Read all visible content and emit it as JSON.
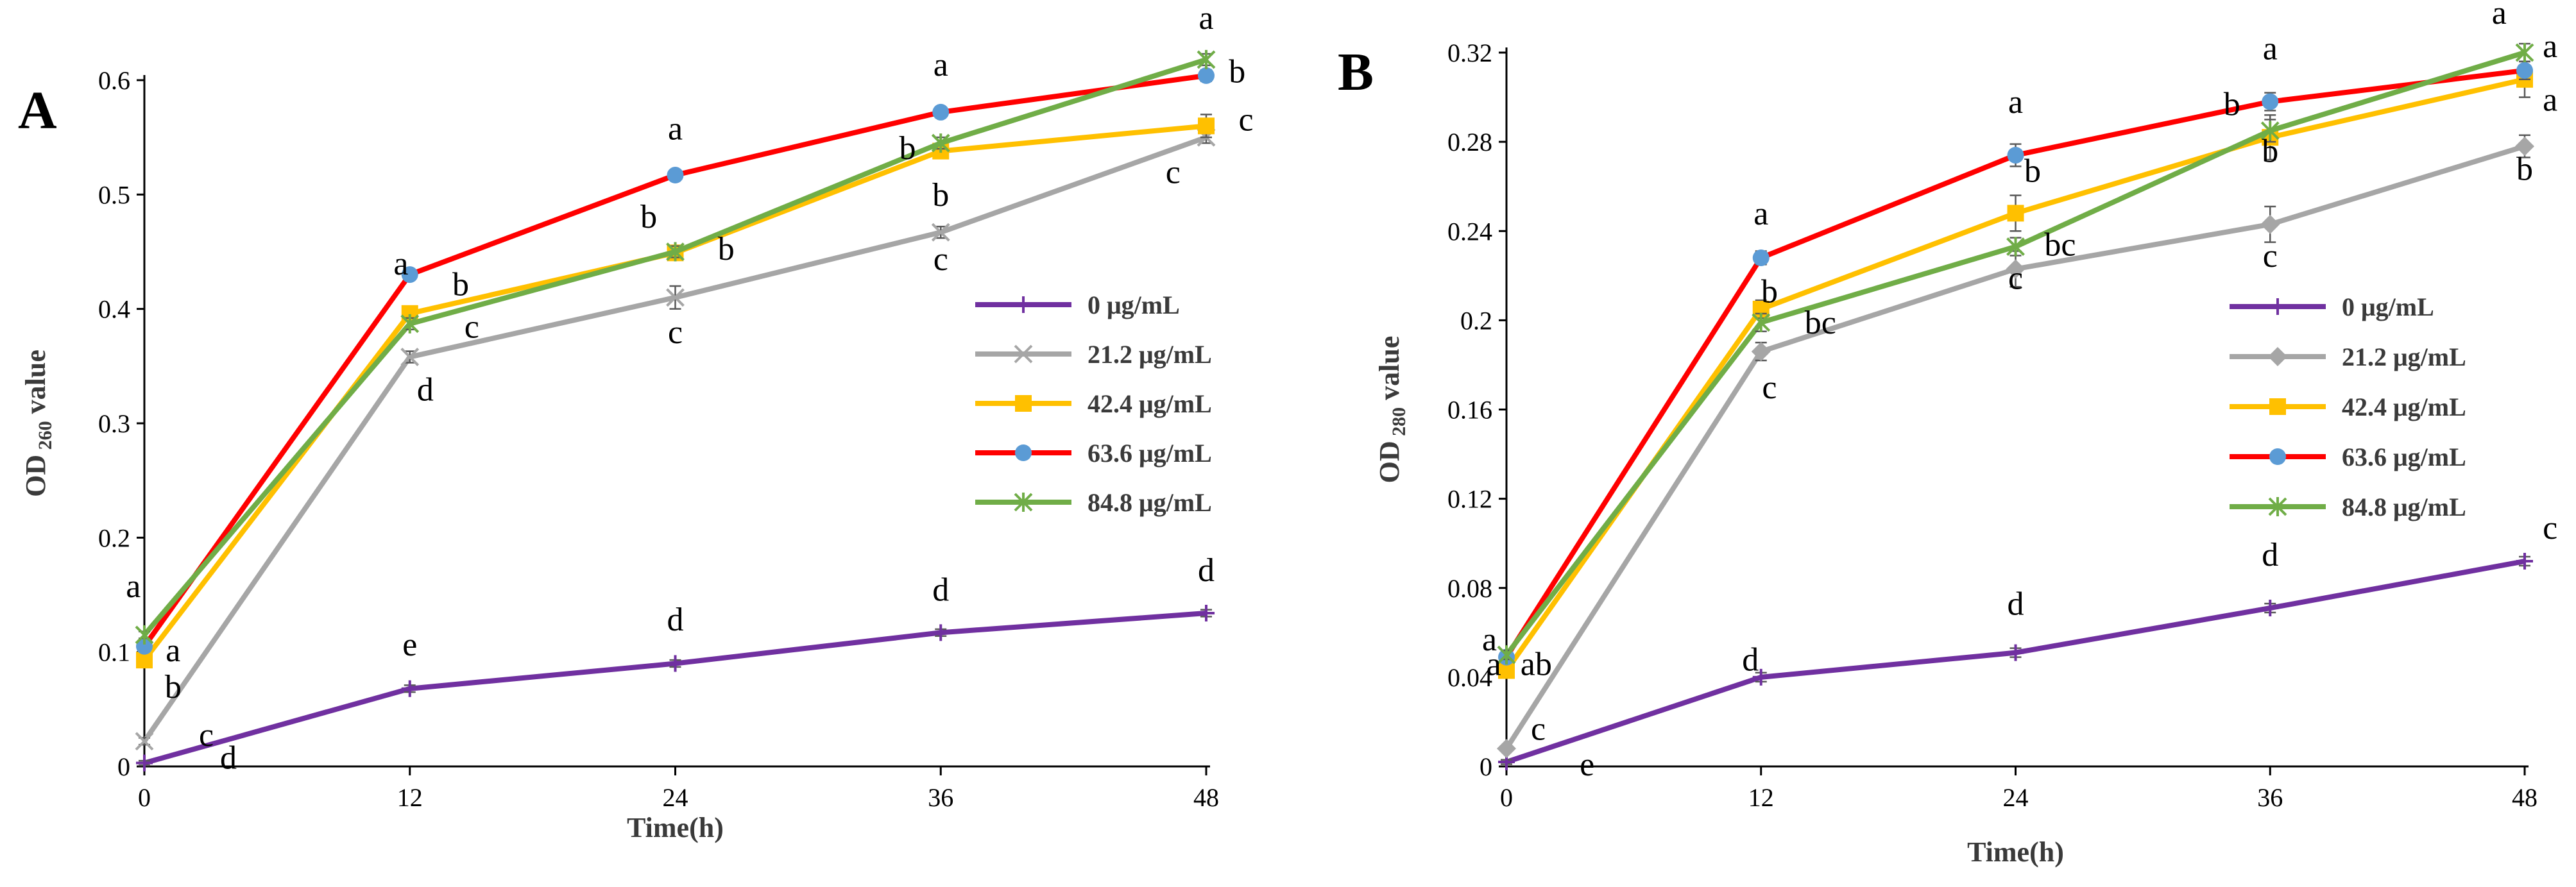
{
  "colors": {
    "0 μg/mL": "#7030A0",
    "21.2 μg/mL": "#A6A6A6",
    "42.4 μg/mL": "#FFC000",
    "63.6 μg/mL": "#FF0000",
    "84.8 μg/mL": "#70AD47",
    "marker_63_6": "#5B9BD5",
    "error_bars": "#595959",
    "axis": "#000000"
  },
  "chart_data": [
    {
      "panel_label": "A",
      "type": "line",
      "title": "",
      "xlabel": "Time(h)",
      "ylabel": {
        "prefix": "OD",
        "sub": "260",
        "suffix": " value"
      },
      "x": [
        0,
        12,
        24,
        36,
        48
      ],
      "xticks": [
        "0",
        "12",
        "24",
        "36",
        "48"
      ],
      "ylim": [
        0,
        0.6
      ],
      "yticks": [
        0,
        0.1,
        0.2,
        0.3,
        0.4,
        0.5,
        0.6
      ],
      "ytick_labels": [
        "0",
        "0.1",
        "0.2",
        "0.3",
        "0.4",
        "0.5",
        "0.6"
      ],
      "series": [
        {
          "name": "0 μg/mL",
          "marker": "plus",
          "values": [
            0.003,
            0.068,
            0.09,
            0.117,
            0.134
          ],
          "errors": [
            0.002,
            0.003,
            0.003,
            0.003,
            0.003
          ]
        },
        {
          "name": "21.2 μg/mL",
          "marker": "x",
          "values": [
            0.022,
            0.358,
            0.41,
            0.467,
            0.55
          ],
          "errors": [
            0.003,
            0.005,
            0.01,
            0.005,
            0.005
          ]
        },
        {
          "name": "42.4 μg/mL",
          "marker": "square",
          "values": [
            0.093,
            0.396,
            0.449,
            0.538,
            0.56
          ],
          "errors": [
            0.004,
            0.005,
            0.005,
            0.005,
            0.01
          ]
        },
        {
          "name": "63.6 μg/mL",
          "marker": "circle",
          "values": [
            0.105,
            0.43,
            0.517,
            0.572,
            0.604
          ],
          "errors": [
            0.003,
            0.003,
            0.003,
            0.003,
            0.005
          ]
        },
        {
          "name": "84.8 μg/mL",
          "marker": "asterisk",
          "values": [
            0.115,
            0.387,
            0.45,
            0.545,
            0.618
          ],
          "errors": [
            0.003,
            0.005,
            0.005,
            0.005,
            0.005
          ]
        }
      ],
      "annotations": [
        {
          "text": "a",
          "x": -0.5,
          "y": 0.148
        },
        {
          "text": "a",
          "x": 1.3,
          "y": 0.092
        },
        {
          "text": "b",
          "x": 1.3,
          "y": 0.06
        },
        {
          "text": "c",
          "x": 2.8,
          "y": 0.018
        },
        {
          "text": "d",
          "x": 3.8,
          "y": -0.002
        },
        {
          "text": "e",
          "x": 12,
          "y": 0.097
        },
        {
          "text": "a",
          "x": 11.6,
          "y": 0.43
        },
        {
          "text": "b",
          "x": 14.3,
          "y": 0.412
        },
        {
          "text": "c",
          "x": 14.8,
          "y": 0.375
        },
        {
          "text": "d",
          "x": 12.7,
          "y": 0.32
        },
        {
          "text": "a",
          "x": 24,
          "y": 0.548
        },
        {
          "text": "b",
          "x": 22.8,
          "y": 0.471
        },
        {
          "text": "b",
          "x": 26.3,
          "y": 0.443
        },
        {
          "text": "c",
          "x": 24,
          "y": 0.37
        },
        {
          "text": "d",
          "x": 24,
          "y": 0.119
        },
        {
          "text": "a",
          "x": 36,
          "y": 0.604
        },
        {
          "text": "b",
          "x": 34.5,
          "y": 0.531
        },
        {
          "text": "b",
          "x": 36,
          "y": 0.49
        },
        {
          "text": "c",
          "x": 36,
          "y": 0.434
        },
        {
          "text": "d",
          "x": 36,
          "y": 0.145
        },
        {
          "text": "a",
          "x": 48,
          "y": 0.645
        },
        {
          "text": "b",
          "x": 49.4,
          "y": 0.598
        },
        {
          "text": "c",
          "x": 49.8,
          "y": 0.556
        },
        {
          "text": "c",
          "x": 46.5,
          "y": 0.51
        },
        {
          "text": "d",
          "x": 48,
          "y": 0.162
        }
      ]
    },
    {
      "panel_label": "B",
      "type": "line",
      "title": "",
      "xlabel": "Time(h)",
      "ylabel": {
        "prefix": "OD",
        "sub": "280",
        "suffix": " value"
      },
      "x": [
        0,
        12,
        24,
        36,
        48
      ],
      "xticks": [
        "0",
        "12",
        "24",
        "36",
        "48"
      ],
      "ylim": [
        0,
        0.32
      ],
      "yticks": [
        0,
        0.04,
        0.08,
        0.12,
        0.16,
        0.2,
        0.24,
        0.28,
        0.32
      ],
      "ytick_labels": [
        "0",
        "0.04",
        "0.08",
        "0.12",
        "0.16",
        "0.2",
        "0.24",
        "0.28",
        "0.32"
      ],
      "series": [
        {
          "name": "0 μg/mL",
          "marker": "plus",
          "values": [
            0.002,
            0.04,
            0.051,
            0.071,
            0.092
          ],
          "errors": [
            0.001,
            0.002,
            0.002,
            0.002,
            0.002
          ]
        },
        {
          "name": "21.2 μg/mL",
          "marker": "diamond",
          "values": [
            0.008,
            0.186,
            0.223,
            0.243,
            0.278
          ],
          "errors": [
            0.001,
            0.004,
            0.008,
            0.008,
            0.005
          ]
        },
        {
          "name": "42.4 μg/mL",
          "marker": "square",
          "values": [
            0.043,
            0.205,
            0.248,
            0.282,
            0.308
          ],
          "errors": [
            0.002,
            0.004,
            0.008,
            0.01,
            0.008
          ]
        },
        {
          "name": "63.6 μg/mL",
          "marker": "circle",
          "values": [
            0.049,
            0.228,
            0.274,
            0.298,
            0.312
          ],
          "errors": [
            0.002,
            0.003,
            0.005,
            0.004,
            0.004
          ]
        },
        {
          "name": "84.8 μg/mL",
          "marker": "asterisk",
          "values": [
            0.05,
            0.199,
            0.233,
            0.285,
            0.32
          ],
          "errors": [
            0.002,
            0.004,
            0.004,
            0.005,
            0.004
          ]
        }
      ],
      "annotations": [
        {
          "text": "a",
          "x": -0.8,
          "y": 0.052
        },
        {
          "text": "a",
          "x": -0.6,
          "y": 0.041
        },
        {
          "text": "ab",
          "x": 1.4,
          "y": 0.041
        },
        {
          "text": "c",
          "x": 1.5,
          "y": 0.012
        },
        {
          "text": "e",
          "x": 3.8,
          "y": -0.004
        },
        {
          "text": "a",
          "x": 12,
          "y": 0.243
        },
        {
          "text": "b",
          "x": 12.4,
          "y": 0.208
        },
        {
          "text": "bc",
          "x": 14.8,
          "y": 0.194
        },
        {
          "text": "c",
          "x": 12.4,
          "y": 0.165
        },
        {
          "text": "d",
          "x": 11.5,
          "y": 0.043
        },
        {
          "text": "a",
          "x": 24,
          "y": 0.293
        },
        {
          "text": "b",
          "x": 24.8,
          "y": 0.262
        },
        {
          "text": "bc",
          "x": 26.1,
          "y": 0.229
        },
        {
          "text": "c",
          "x": 24,
          "y": 0.214
        },
        {
          "text": "d",
          "x": 24,
          "y": 0.068
        },
        {
          "text": "a",
          "x": 36,
          "y": 0.317
        },
        {
          "text": "b",
          "x": 34.2,
          "y": 0.292
        },
        {
          "text": "b",
          "x": 36,
          "y": 0.271
        },
        {
          "text": "c",
          "x": 36,
          "y": 0.224
        },
        {
          "text": "d",
          "x": 36,
          "y": 0.09
        },
        {
          "text": "a",
          "x": 46.8,
          "y": 0.333
        },
        {
          "text": "a",
          "x": 49.2,
          "y": 0.318
        },
        {
          "text": "a",
          "x": 49.2,
          "y": 0.294
        },
        {
          "text": "b",
          "x": 48,
          "y": 0.263
        },
        {
          "text": "c",
          "x": 49.2,
          "y": 0.102
        }
      ]
    }
  ]
}
